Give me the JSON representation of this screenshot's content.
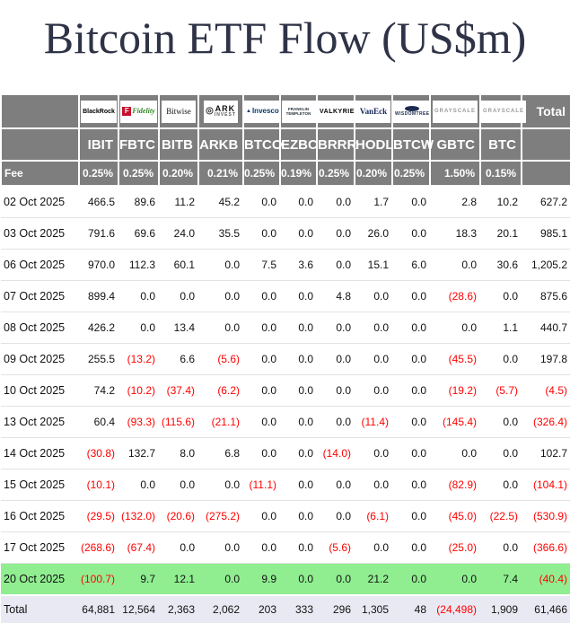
{
  "title": "Bitcoin ETF Flow (US$m)",
  "colors": {
    "header_bg": "#7e7e7e",
    "header_text": "#ffffff",
    "negative": "#ff0000",
    "highlight_row_bg": "#90ee90",
    "total_row_bg": "#e9e9f4",
    "title_color": "#2f3347"
  },
  "chart_data": {
    "type": "table",
    "title": "Bitcoin ETF Flow (US$m)",
    "unit": "US$m",
    "fee_label": "Fee",
    "total_label": "Total",
    "columns": [
      {
        "ticker": "IBIT",
        "fee": "0.25%",
        "provider": "BlackRock",
        "logo": "blackrock"
      },
      {
        "ticker": "FBTC",
        "fee": "0.25%",
        "provider": "Fidelity",
        "logo": "fidelity"
      },
      {
        "ticker": "BITB",
        "fee": "0.20%",
        "provider": "Bitwise",
        "logo": "bitwise"
      },
      {
        "ticker": "ARKB",
        "fee": "0.21%",
        "provider": "ARK INVEST",
        "logo": "ark"
      },
      {
        "ticker": "BTCO",
        "fee": "0.25%",
        "provider": "Invesco",
        "logo": "invesco"
      },
      {
        "ticker": "EZBC",
        "fee": "0.19%",
        "provider": "FRANKLIN TEMPLETON",
        "logo": "franklin"
      },
      {
        "ticker": "BRRR",
        "fee": "0.25%",
        "provider": "VALKYRIE",
        "logo": "valkyrie"
      },
      {
        "ticker": "HODL",
        "fee": "0.20%",
        "provider": "VanEck",
        "logo": "vaneck"
      },
      {
        "ticker": "BTCW",
        "fee": "0.25%",
        "provider": "WISDOMTREE",
        "logo": "wisdomtree"
      },
      {
        "ticker": "GBTC",
        "fee": "1.50%",
        "provider": "GRAYSCALE",
        "logo": "grayscale"
      },
      {
        "ticker": "BTC",
        "fee": "0.15%",
        "provider": "GRAYSCALE",
        "logo": "grayscale"
      }
    ],
    "rows": [
      {
        "date": "02 Oct 2025",
        "highlight": false,
        "values": [
          "466.5",
          "89.6",
          "11.2",
          "45.2",
          "0.0",
          "0.0",
          "0.0",
          "1.7",
          "0.0",
          "2.8",
          "10.2",
          "627.2"
        ]
      },
      {
        "date": "03 Oct 2025",
        "highlight": false,
        "values": [
          "791.6",
          "69.6",
          "24.0",
          "35.5",
          "0.0",
          "0.0",
          "0.0",
          "26.0",
          "0.0",
          "18.3",
          "20.1",
          "985.1"
        ]
      },
      {
        "date": "06 Oct 2025",
        "highlight": false,
        "values": [
          "970.0",
          "112.3",
          "60.1",
          "0.0",
          "7.5",
          "3.6",
          "0.0",
          "15.1",
          "6.0",
          "0.0",
          "30.6",
          "1,205.2"
        ]
      },
      {
        "date": "07 Oct 2025",
        "highlight": false,
        "values": [
          "899.4",
          "0.0",
          "0.0",
          "0.0",
          "0.0",
          "0.0",
          "4.8",
          "0.0",
          "0.0",
          "(28.6)",
          "0.0",
          "875.6"
        ]
      },
      {
        "date": "08 Oct 2025",
        "highlight": false,
        "values": [
          "426.2",
          "0.0",
          "13.4",
          "0.0",
          "0.0",
          "0.0",
          "0.0",
          "0.0",
          "0.0",
          "0.0",
          "1.1",
          "440.7"
        ]
      },
      {
        "date": "09 Oct 2025",
        "highlight": false,
        "values": [
          "255.5",
          "(13.2)",
          "6.6",
          "(5.6)",
          "0.0",
          "0.0",
          "0.0",
          "0.0",
          "0.0",
          "(45.5)",
          "0.0",
          "197.8"
        ]
      },
      {
        "date": "10 Oct 2025",
        "highlight": false,
        "values": [
          "74.2",
          "(10.2)",
          "(37.4)",
          "(6.2)",
          "0.0",
          "0.0",
          "0.0",
          "0.0",
          "0.0",
          "(19.2)",
          "(5.7)",
          "(4.5)"
        ]
      },
      {
        "date": "13 Oct 2025",
        "highlight": false,
        "values": [
          "60.4",
          "(93.3)",
          "(115.6)",
          "(21.1)",
          "0.0",
          "0.0",
          "0.0",
          "(11.4)",
          "0.0",
          "(145.4)",
          "0.0",
          "(326.4)"
        ]
      },
      {
        "date": "14 Oct 2025",
        "highlight": false,
        "values": [
          "(30.8)",
          "132.7",
          "8.0",
          "6.8",
          "0.0",
          "0.0",
          "(14.0)",
          "0.0",
          "0.0",
          "0.0",
          "0.0",
          "102.7"
        ]
      },
      {
        "date": "15 Oct 2025",
        "highlight": false,
        "values": [
          "(10.1)",
          "0.0",
          "0.0",
          "0.0",
          "(11.1)",
          "0.0",
          "0.0",
          "0.0",
          "0.0",
          "(82.9)",
          "0.0",
          "(104.1)"
        ]
      },
      {
        "date": "16 Oct 2025",
        "highlight": false,
        "values": [
          "(29.5)",
          "(132.0)",
          "(20.6)",
          "(275.2)",
          "0.0",
          "0.0",
          "0.0",
          "(6.1)",
          "0.0",
          "(45.0)",
          "(22.5)",
          "(530.9)"
        ]
      },
      {
        "date": "17 Oct 2025",
        "highlight": false,
        "values": [
          "(268.6)",
          "(67.4)",
          "0.0",
          "0.0",
          "0.0",
          "0.0",
          "(5.6)",
          "0.0",
          "0.0",
          "(25.0)",
          "0.0",
          "(366.6)"
        ]
      },
      {
        "date": "20 Oct 2025",
        "highlight": true,
        "values": [
          "(100.7)",
          "9.7",
          "12.1",
          "0.0",
          "9.9",
          "0.0",
          "0.0",
          "21.2",
          "0.0",
          "0.0",
          "7.4",
          "(40.4)"
        ]
      }
    ],
    "total_row": {
      "label": "Total",
      "values": [
        "64,881",
        "12,564",
        "2,363",
        "2,062",
        "203",
        "333",
        "296",
        "1,305",
        "48",
        "(24,498)",
        "1,909",
        "61,466"
      ]
    }
  }
}
